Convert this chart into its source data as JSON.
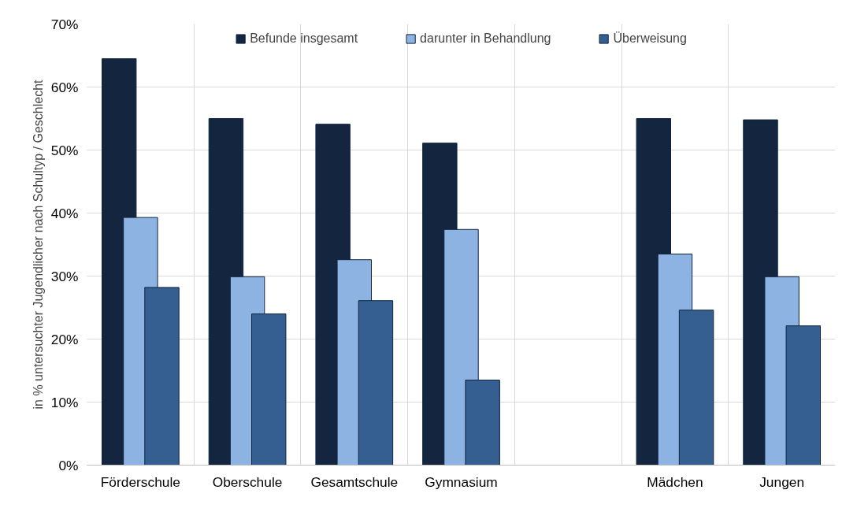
{
  "chart_data": {
    "type": "bar",
    "ylabel": "in % untersuchter Jugendlicher nach Schultyp / Geschlecht",
    "categories": [
      "Förderschule",
      "Oberschule",
      "Gesamtschule",
      "Gymnasium",
      null,
      "Mädchen",
      "Jungen"
    ],
    "series": [
      {
        "name": "Befunde insgesamt",
        "color": "#13253f",
        "values": [
          64.5,
          55.0,
          54.1,
          51.1,
          null,
          55.0,
          54.8
        ]
      },
      {
        "name": "darunter in Behandlung",
        "color": "#8db3e2",
        "values": [
          39.3,
          29.9,
          32.6,
          37.4,
          null,
          33.5,
          29.9
        ]
      },
      {
        "name": "Überweisung",
        "color": "#355f91",
        "values": [
          28.2,
          24.0,
          26.1,
          13.5,
          null,
          24.6,
          22.1
        ]
      }
    ],
    "ylim": [
      0,
      70
    ],
    "yticks": [
      {
        "value": 0,
        "label": "0%"
      },
      {
        "value": 10,
        "label": "10%"
      },
      {
        "value": 20,
        "label": "20%"
      },
      {
        "value": 30,
        "label": "30%"
      },
      {
        "value": 40,
        "label": "40%"
      },
      {
        "value": 50,
        "label": "50%"
      },
      {
        "value": 60,
        "label": "60%"
      },
      {
        "value": 70,
        "label": "70%"
      }
    ],
    "grid": true,
    "legend": "top"
  }
}
